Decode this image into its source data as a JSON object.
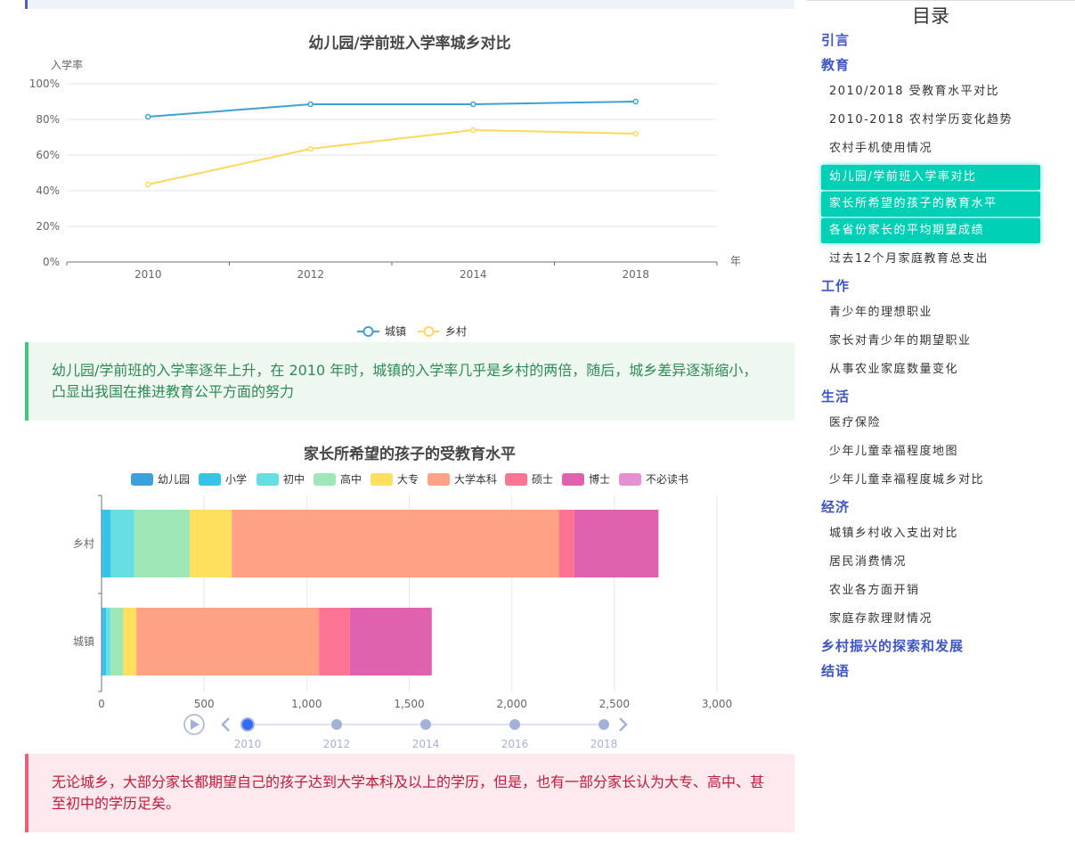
{
  "note_green": "幼儿园/学前班的入学率逐年上升，在 2010 年时，城镇的入学率几乎是乡村的两倍，随后，城乡差异逐渐缩小，凸显出我国在推进教育公平方面的努力",
  "note_red": "无论城乡，大部分家长都期望自己的孩子达到大学本科及以上的学历，但是，也有一部分家长认为大专、高中、甚至初中的学历足矣。",
  "toc": {
    "title": "目录",
    "entries": [
      {
        "type": "section",
        "label": "引言"
      },
      {
        "type": "section",
        "label": "教育"
      },
      {
        "type": "item",
        "label": "2010/2018 受教育水平对比"
      },
      {
        "type": "item",
        "label": "2010-2018 农村学历变化趋势"
      },
      {
        "type": "item",
        "label": "农村手机使用情况"
      },
      {
        "type": "item",
        "label": "幼儿园/学前班入学率对比",
        "active": true
      },
      {
        "type": "item",
        "label": "家长所希望的孩子的教育水平",
        "active": true
      },
      {
        "type": "item",
        "label": "各省份家长的平均期望成绩",
        "active": true
      },
      {
        "type": "item",
        "label": "过去12个月家庭教育总支出"
      },
      {
        "type": "section",
        "label": "工作"
      },
      {
        "type": "item",
        "label": "青少年的理想职业"
      },
      {
        "type": "item",
        "label": "家长对青少年的期望职业"
      },
      {
        "type": "item",
        "label": "从事农业家庭数量变化"
      },
      {
        "type": "section",
        "label": "生活"
      },
      {
        "type": "item",
        "label": "医疗保险"
      },
      {
        "type": "item",
        "label": "少年儿童幸福程度地图"
      },
      {
        "type": "item",
        "label": "少年儿童幸福程度城乡对比"
      },
      {
        "type": "section",
        "label": "经济"
      },
      {
        "type": "item",
        "label": "城镇乡村收入支出对比"
      },
      {
        "type": "item",
        "label": "居民消费情况"
      },
      {
        "type": "item",
        "label": "农业各方面开销"
      },
      {
        "type": "item",
        "label": "家庭存款理财情况"
      },
      {
        "type": "section",
        "label": "乡村振兴的探索和发展"
      },
      {
        "type": "section",
        "label": "结语"
      }
    ]
  },
  "colors": {
    "active_bg": "#00d0b6",
    "section": "#3d55c6"
  },
  "chart_data": [
    {
      "type": "line",
      "title": "幼儿园/学前班入学率城乡对比",
      "ylabel": "入学率",
      "xlabel": "年",
      "categories": [
        "2010",
        "2012",
        "2014",
        "2018"
      ],
      "ylim": [
        0,
        100
      ],
      "yticks": [
        "0%",
        "20%",
        "40%",
        "60%",
        "80%",
        "100%"
      ],
      "legend_position": "bottom",
      "series": [
        {
          "name": "城镇",
          "color": "#3fa0d4",
          "values": [
            81.5,
            88.5,
            88.5,
            90
          ]
        },
        {
          "name": "乡村",
          "color": "#ffd85c",
          "values": [
            43.5,
            63.5,
            74,
            72
          ]
        }
      ]
    },
    {
      "type": "bar",
      "orientation": "horizontal",
      "stacked": true,
      "title": "家长所希望的孩子的受教育水平",
      "categories": [
        "乡村",
        "城镇"
      ],
      "xlim": [
        0,
        3000
      ],
      "xticks": [
        "0",
        "500",
        "1,000",
        "1,500",
        "2,000",
        "2,500",
        "3,000"
      ],
      "legend_position": "top",
      "series": [
        {
          "name": "幼儿园",
          "color": "#3ba1da",
          "values": [
            5,
            5
          ]
        },
        {
          "name": "小学",
          "color": "#36c3e8",
          "values": [
            40,
            18
          ]
        },
        {
          "name": "初中",
          "color": "#65dfe2",
          "values": [
            115,
            20
          ]
        },
        {
          "name": "高中",
          "color": "#a0e7b7",
          "values": [
            270,
            63
          ]
        },
        {
          "name": "大专",
          "color": "#fedf5e",
          "values": [
            205,
            64
          ]
        },
        {
          "name": "大学本科",
          "color": "#fea184",
          "values": [
            1595,
            890
          ]
        },
        {
          "name": "硕士",
          "color": "#fb7494",
          "values": [
            75,
            150
          ]
        },
        {
          "name": "博士",
          "color": "#e062af",
          "values": [
            410,
            400
          ]
        },
        {
          "name": "不必读书",
          "color": "#e690d1",
          "values": [
            0,
            0
          ]
        }
      ],
      "timeline": {
        "years": [
          "2010",
          "2012",
          "2014",
          "2016",
          "2018"
        ],
        "current": "2010"
      }
    }
  ]
}
